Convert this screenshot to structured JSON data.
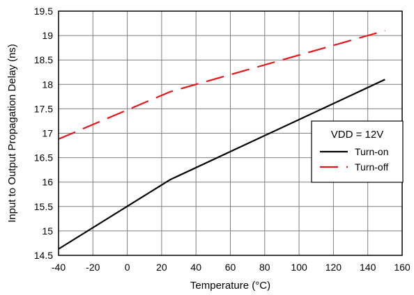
{
  "chart_data": {
    "type": "line",
    "title": "",
    "xlabel": "Temperature (°C)",
    "ylabel": "Input to Output Propagation Delay (ns)",
    "xlim": [
      -40,
      160
    ],
    "ylim": [
      14.5,
      19.5
    ],
    "xticks": [
      -40,
      -20,
      0,
      20,
      40,
      60,
      80,
      100,
      120,
      140,
      160
    ],
    "yticks": [
      14.5,
      15,
      15.5,
      16,
      16.5,
      17,
      17.5,
      18,
      18.5,
      19,
      19.5
    ],
    "xtick_labels": [
      "-40",
      "-20",
      "0",
      "20",
      "40",
      "60",
      "80",
      "100",
      "120",
      "140",
      "160"
    ],
    "ytick_labels": [
      "14.5",
      "15",
      "15.5",
      "16",
      "16.5",
      "17",
      "17.5",
      "18",
      "18.5",
      "19",
      "19.5"
    ],
    "grid": true,
    "legend": {
      "title": "VDD = 12V",
      "placement": "right"
    },
    "series": [
      {
        "name": "Turn-on",
        "color": "#000000",
        "style": "solid",
        "x": [
          -40,
          25,
          150
        ],
        "y": [
          14.63,
          16.05,
          18.1
        ]
      },
      {
        "name": "Turn-off",
        "color": "#e8151b",
        "style": "dashed",
        "x": [
          -40,
          25,
          150
        ],
        "y": [
          16.88,
          17.85,
          19.1
        ]
      }
    ]
  }
}
